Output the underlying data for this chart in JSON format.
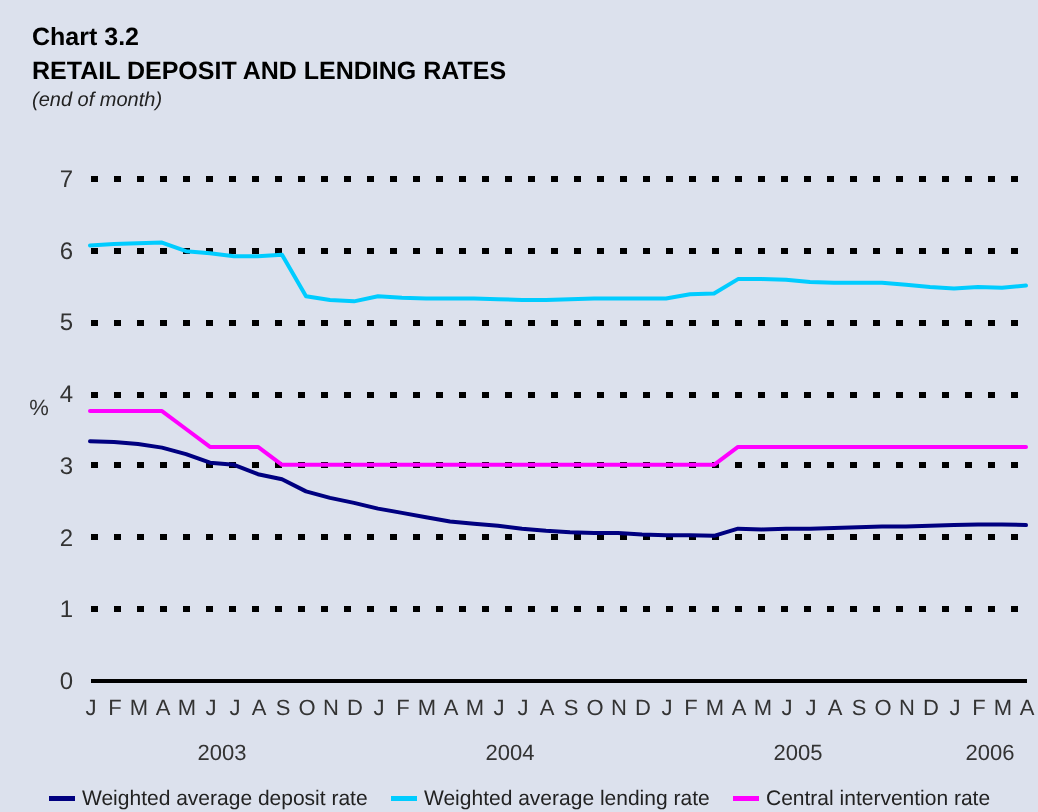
{
  "chart_data": {
    "type": "line",
    "title": "Chart 3.2\nRETAIL DEPOSIT AND LENDING RATES",
    "subtitle": "(end of month)",
    "ylabel": "%",
    "categories": [
      "J",
      "F",
      "M",
      "A",
      "M",
      "J",
      "J",
      "A",
      "S",
      "O",
      "N",
      "D",
      "J",
      "F",
      "M",
      "A",
      "M",
      "J",
      "J",
      "A",
      "S",
      "O",
      "N",
      "D",
      "J",
      "F",
      "M",
      "A",
      "M",
      "J",
      "J",
      "A",
      "S",
      "O",
      "N",
      "D",
      "J",
      "F",
      "M",
      "A"
    ],
    "series": [
      {
        "name": "Weighted average deposit rate",
        "color": "#000080",
        "values": [
          3.33,
          3.32,
          3.29,
          3.24,
          3.15,
          3.03,
          3.0,
          2.87,
          2.8,
          2.63,
          2.54,
          2.47,
          2.39,
          2.33,
          2.27,
          2.21,
          2.18,
          2.15,
          2.11,
          2.08,
          2.06,
          2.05,
          2.05,
          2.03,
          2.02,
          2.02,
          2.01,
          2.11,
          2.1,
          2.11,
          2.11,
          2.12,
          2.13,
          2.14,
          2.14,
          2.15,
          2.16,
          2.17,
          2.17,
          2.16
        ]
      },
      {
        "name": "Weighted average lending rate",
        "color": "#00ccff",
        "values": [
          6.06,
          6.08,
          6.09,
          6.1,
          5.98,
          5.95,
          5.91,
          5.91,
          5.93,
          5.35,
          5.3,
          5.28,
          5.35,
          5.33,
          5.32,
          5.32,
          5.32,
          5.31,
          5.3,
          5.3,
          5.31,
          5.32,
          5.32,
          5.32,
          5.32,
          5.38,
          5.39,
          5.59,
          5.59,
          5.58,
          5.55,
          5.54,
          5.54,
          5.54,
          5.51,
          5.48,
          5.46,
          5.48,
          5.47,
          5.5
        ]
      },
      {
        "name": "Central intervention rate",
        "color": "#ff00ff",
        "values": [
          3.75,
          3.75,
          3.75,
          3.75,
          3.5,
          3.25,
          3.25,
          3.25,
          3.0,
          3.0,
          3.0,
          3.0,
          3.0,
          3.0,
          3.0,
          3.0,
          3.0,
          3.0,
          3.0,
          3.0,
          3.0,
          3.0,
          3.0,
          3.0,
          3.0,
          3.0,
          3.0,
          3.25,
          3.25,
          3.25,
          3.25,
          3.25,
          3.25,
          3.25,
          3.25,
          3.25,
          3.25,
          3.25,
          3.25,
          3.25
        ]
      }
    ],
    "annotations": [
      "2003",
      "2004",
      "2005",
      "2006"
    ],
    "ylim": [
      0,
      7
    ],
    "yticks": [
      0,
      1,
      2,
      3,
      4,
      5,
      6,
      7
    ],
    "grid": "y",
    "legend": "bottom"
  }
}
